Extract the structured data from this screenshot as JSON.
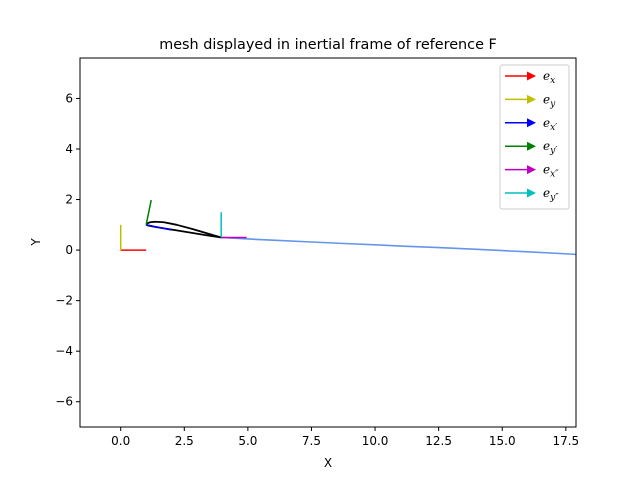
{
  "chart_data": {
    "type": "line",
    "title": "mesh displayed in inertial frame of reference F",
    "xlabel": "X",
    "ylabel": "Y",
    "xlim": [
      -1.6,
      17.9
    ],
    "ylim": [
      -7.0,
      7.6
    ],
    "xticks": [
      0.0,
      2.5,
      5.0,
      7.5,
      10.0,
      12.5,
      15.0,
      17.5
    ],
    "xtick_labels": [
      "0.0",
      "2.5",
      "5.0",
      "7.5",
      "10.0",
      "12.5",
      "15.0",
      "17.5"
    ],
    "yticks": [
      -6,
      -4,
      -2,
      0,
      2,
      4,
      6
    ],
    "ytick_labels": [
      "−6",
      "−4",
      "−2",
      "0",
      "2",
      "4",
      "6"
    ],
    "grid": false,
    "legend_position": "top-right",
    "legend": [
      {
        "key": "ex",
        "base": "e",
        "sub": "x",
        "color": "#ff0000"
      },
      {
        "key": "ey",
        "base": "e",
        "sub": "y",
        "color": "#bfbf00"
      },
      {
        "key": "exp",
        "base": "e",
        "sub": "x′",
        "color": "#0000ff"
      },
      {
        "key": "eyp",
        "base": "e",
        "sub": "y′",
        "color": "#008000"
      },
      {
        "key": "expp",
        "base": "e",
        "sub": "x″",
        "color": "#bf00bf"
      },
      {
        "key": "eypp",
        "base": "e",
        "sub": "y″",
        "color": "#00bfbf"
      }
    ],
    "vectors": [
      {
        "key": "ex",
        "color": "#ff0000",
        "x0": 0.0,
        "y0": 0.0,
        "x1": 1.0,
        "y1": 0.0
      },
      {
        "key": "ey",
        "color": "#bfbf00",
        "x0": 0.0,
        "y0": 0.0,
        "x1": 0.0,
        "y1": 1.0
      },
      {
        "key": "exp",
        "color": "#0000ff",
        "x0": 1.0,
        "y0": 1.0,
        "x1": 1.98,
        "y1": 0.8
      },
      {
        "key": "eyp",
        "color": "#008000",
        "x0": 1.0,
        "y0": 1.0,
        "x1": 1.2,
        "y1": 1.98
      },
      {
        "key": "expp",
        "color": "#bf00bf",
        "x0": 3.95,
        "y0": 0.5,
        "x1": 4.95,
        "y1": 0.5
      },
      {
        "key": "eypp",
        "color": "#00bfbf",
        "x0": 3.95,
        "y0": 0.5,
        "x1": 3.95,
        "y1": 1.5
      }
    ],
    "series": [
      {
        "key": "airfoil",
        "color": "#000000",
        "x": [
          1.0,
          1.05,
          1.15,
          1.35,
          1.7,
          2.2,
          2.8,
          3.4,
          3.95,
          3.4,
          2.8,
          2.2,
          1.7,
          1.35,
          1.15,
          1.05,
          1.0
        ],
        "y": [
          1.0,
          1.06,
          1.1,
          1.12,
          1.1,
          1.0,
          0.84,
          0.66,
          0.5,
          0.58,
          0.68,
          0.78,
          0.86,
          0.92,
          0.96,
          0.98,
          1.0
        ]
      },
      {
        "key": "wake",
        "color": "#6495ed",
        "x": [
          3.95,
          5.0,
          6.0,
          7.5,
          9.0,
          10.0,
          11.0,
          12.5,
          14.0,
          15.0,
          16.0,
          17.0,
          17.9
        ],
        "y": [
          0.5,
          0.44,
          0.39,
          0.32,
          0.25,
          0.21,
          0.16,
          0.1,
          0.03,
          -0.02,
          -0.07,
          -0.12,
          -0.17
        ]
      }
    ]
  }
}
